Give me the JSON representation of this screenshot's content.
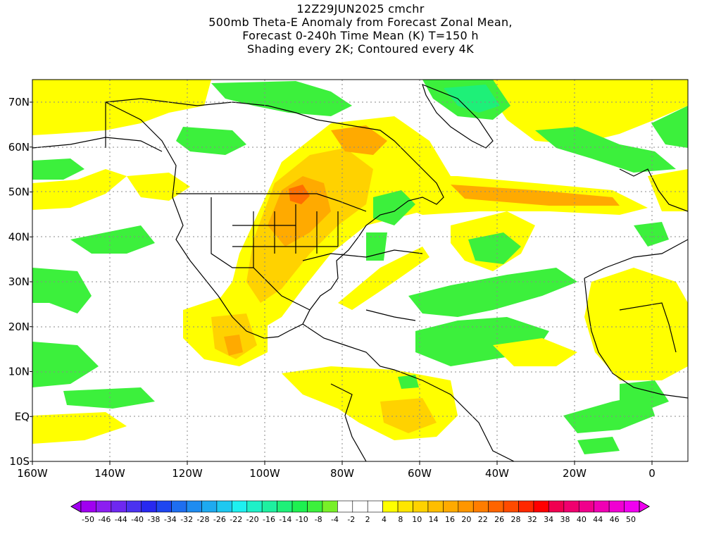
{
  "title": {
    "line1": "12Z29JUN2025 cmchr",
    "line2": "500mb Theta-E Anomaly from Forecast Zonal Mean,",
    "line3": "Forecast 0-240h Time Mean (K) T=150 h",
    "line4": "Shading every 2K; Contoured every 4K"
  },
  "axes": {
    "x_labels": [
      "160W",
      "140W",
      "120W",
      "100W",
      "80W",
      "60W",
      "40W",
      "20W",
      "0"
    ],
    "y_labels": [
      "70N",
      "60N",
      "50N",
      "40N",
      "30N",
      "20N",
      "10N",
      "EQ",
      "10S"
    ]
  },
  "colorbar": {
    "labels": [
      "-50",
      "-46",
      "-44",
      "-40",
      "-38",
      "-34",
      "-32",
      "-28",
      "-26",
      "-22",
      "-20",
      "-16",
      "-14",
      "-10",
      "-8",
      "-4",
      "-2",
      "2",
      "4",
      "8",
      "10",
      "14",
      "16",
      "20",
      "22",
      "26",
      "28",
      "32",
      "34",
      "38",
      "40",
      "44",
      "46",
      "50"
    ],
    "colors": [
      "#a000f0",
      "#8c1ef0",
      "#6e28f0",
      "#4b32f0",
      "#2828f0",
      "#1e46f0",
      "#1e6ef0",
      "#1e8cf0",
      "#1eaaf0",
      "#1ec8f0",
      "#1ef0f0",
      "#1ef0c8",
      "#1ef0a0",
      "#1ef078",
      "#1ef050",
      "#3cf03c",
      "#78f028",
      "#ffffff",
      "#ffffff",
      "#ffffff",
      "#ffff00",
      "#ffe600",
      "#ffd200",
      "#ffbe00",
      "#ffaa00",
      "#ff9600",
      "#ff7d00",
      "#ff6400",
      "#ff4b00",
      "#ff2800",
      "#ff0000",
      "#f00050",
      "#f0006e",
      "#f0008c",
      "#f000b4",
      "#f000d2",
      "#f000f0"
    ]
  },
  "legend_colors": {
    "warm_light": "#ffff00",
    "warm_mid": "#ffd200",
    "warm_strong": "#ffaa00",
    "warm_max": "#ff6e00",
    "cool_light": "#3cf03c",
    "cool_mid": "#1ef078"
  }
}
